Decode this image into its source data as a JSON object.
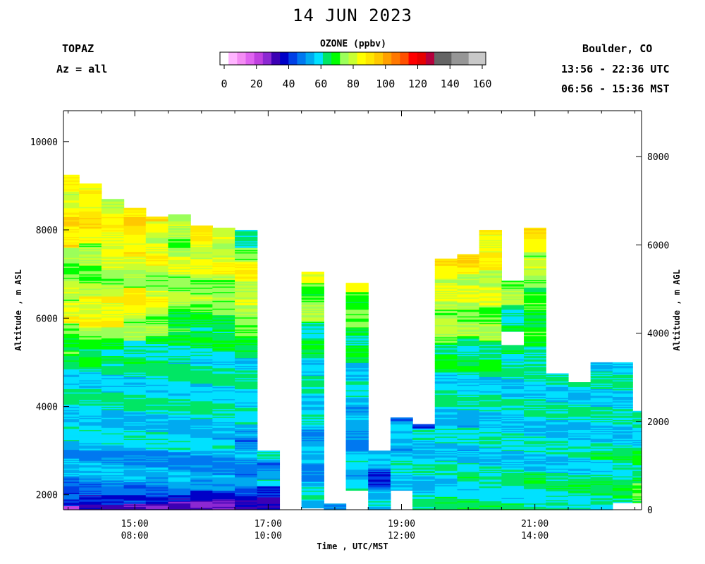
{
  "title": "14 JUN 2023",
  "header": {
    "instrument": "TOPAZ",
    "azimuth": "Az = all",
    "location": "Boulder, CO",
    "utc_range": "13:56 - 22:36 UTC",
    "mst_range": "06:56 - 15:36 MST"
  },
  "colorbar": {
    "title": "OZONE (ppbv)",
    "tick_labels": [
      "0",
      "20",
      "40",
      "60",
      "80",
      "100",
      "120",
      "140",
      "160"
    ],
    "colors": [
      "#ffffff",
      "#ffb4ff",
      "#f48cf4",
      "#e064f0",
      "#c040e0",
      "#8c28d2",
      "#3c00b4",
      "#0000c8",
      "#0040e6",
      "#0078f0",
      "#00aaf0",
      "#00e1ff",
      "#00e664",
      "#00ff00",
      "#9bff5a",
      "#c8ff32",
      "#ffff00",
      "#ffe600",
      "#ffc800",
      "#ffa000",
      "#ff7800",
      "#ff5000",
      "#ff0000",
      "#e60000",
      "#b4003c",
      "#646464",
      "#646464",
      "#969696",
      "#969696",
      "#c8c8c8",
      "#c8c8c8"
    ]
  },
  "chart_data": {
    "type": "heatmap",
    "title": "14 JUN 2023",
    "variable": "OZONE (ppbv)",
    "xlabel": "Time , UTC/MST",
    "ylabel_left": "Altitude , m ASL",
    "ylabel_right": "Altitude , m AGL",
    "x_ticks": [
      {
        "utc": "15:00",
        "mst": "08:00"
      },
      {
        "utc": "17:00",
        "mst": "10:00"
      },
      {
        "utc": "19:00",
        "mst": "12:00"
      },
      {
        "utc": "21:00",
        "mst": "14:00"
      }
    ],
    "x_range_utc_hours": [
      13.93,
      22.6
    ],
    "y_ticks_left": [
      "2000",
      "4000",
      "6000",
      "8000",
      "10000"
    ],
    "y_ticks_right": [
      "0",
      "2000",
      "4000",
      "6000",
      "8000"
    ],
    "y_range_asl_m": [
      1660,
      10700
    ],
    "color_range_ppbv": [
      0,
      160
    ],
    "profiles": [
      {
        "t_utc": 14.0,
        "top_m": 9250,
        "bottom_m": 1660,
        "layers": [
          [
            1660,
            25
          ],
          [
            1750,
            43
          ],
          [
            1900,
            49
          ],
          [
            2200,
            54
          ],
          [
            2400,
            56
          ],
          [
            3000,
            60
          ],
          [
            3500,
            61
          ],
          [
            3900,
            64
          ],
          [
            4800,
            67
          ],
          [
            5200,
            74
          ],
          [
            5900,
            89
          ],
          [
            6400,
            80
          ],
          [
            7000,
            76
          ],
          [
            7600,
            93
          ],
          [
            8300,
            86
          ],
          [
            9250
          ]
        ]
      },
      {
        "t_utc": 14.33,
        "top_m": 9050,
        "bottom_m": 1660,
        "layers": [
          [
            1660,
            34
          ],
          [
            1800,
            42
          ],
          [
            2000,
            53
          ],
          [
            2300,
            56
          ],
          [
            3000,
            60
          ],
          [
            3600,
            61
          ],
          [
            3800,
            64
          ],
          [
            4900,
            67
          ],
          [
            5300,
            76
          ],
          [
            5800,
            88
          ],
          [
            6500,
            79
          ],
          [
            7200,
            77
          ],
          [
            7700,
            91
          ],
          [
            8900,
            85
          ],
          [
            9050
          ]
        ]
      },
      {
        "t_utc": 14.67,
        "top_m": 8700,
        "bottom_m": 1660,
        "layers": [
          [
            1660,
            33
          ],
          [
            1780,
            43
          ],
          [
            2000,
            54
          ],
          [
            2200,
            56
          ],
          [
            3000,
            60
          ],
          [
            3600,
            61
          ],
          [
            3900,
            64
          ],
          [
            5000,
            67
          ],
          [
            5300,
            75
          ],
          [
            5800,
            89
          ],
          [
            6500,
            80
          ],
          [
            7100,
            82
          ],
          [
            7500,
            88
          ],
          [
            8500,
            84
          ],
          [
            8700
          ]
        ]
      },
      {
        "t_utc": 15.0,
        "top_m": 8500,
        "bottom_m": 1660,
        "layers": [
          [
            1660,
            32
          ],
          [
            1800,
            45
          ],
          [
            2000,
            53
          ],
          [
            2300,
            56
          ],
          [
            3000,
            60
          ],
          [
            3600,
            61
          ],
          [
            3900,
            64
          ],
          [
            4900,
            67
          ],
          [
            5500,
            77
          ],
          [
            6000,
            90
          ],
          [
            6700,
            81
          ],
          [
            7400,
            91
          ],
          [
            8100,
            95
          ],
          [
            8500
          ]
        ]
      },
      {
        "t_utc": 15.33,
        "top_m": 8300,
        "bottom_m": 1660,
        "layers": [
          [
            1660,
            33
          ],
          [
            1800,
            46
          ],
          [
            1950,
            53
          ],
          [
            2400,
            56
          ],
          [
            3000,
            60
          ],
          [
            3500,
            61
          ],
          [
            3900,
            64
          ],
          [
            5000,
            67
          ],
          [
            5600,
            77
          ],
          [
            6100,
            86
          ],
          [
            6500,
            80
          ],
          [
            7200,
            88
          ],
          [
            7700,
            83
          ],
          [
            8200,
            94
          ],
          [
            8300
          ]
        ]
      },
      {
        "t_utc": 15.67,
        "top_m": 8350,
        "bottom_m": 1660,
        "layers": [
          [
            1660,
            35
          ],
          [
            1850,
            45
          ],
          [
            2000,
            54
          ],
          [
            2300,
            56
          ],
          [
            3000,
            60
          ],
          [
            3500,
            61
          ],
          [
            3900,
            64
          ],
          [
            5000,
            67
          ],
          [
            5700,
            73
          ],
          [
            6300,
            79
          ],
          [
            7000,
            83
          ],
          [
            7600,
            77
          ],
          [
            8100,
            80
          ],
          [
            8350
          ]
        ]
      },
      {
        "t_utc": 16.0,
        "top_m": 8100,
        "bottom_m": 1660,
        "layers": [
          [
            1660,
            34
          ],
          [
            1850,
            44
          ],
          [
            2100,
            53
          ],
          [
            2400,
            56
          ],
          [
            3000,
            60
          ],
          [
            3500,
            61
          ],
          [
            3900,
            64
          ],
          [
            5100,
            66
          ],
          [
            5800,
            73
          ],
          [
            6400,
            80
          ],
          [
            7000,
            84
          ],
          [
            7600,
            89
          ],
          [
            8000,
            92
          ],
          [
            8100
          ]
        ]
      },
      {
        "t_utc": 16.33,
        "top_m": 8050,
        "bottom_m": 1660,
        "layers": [
          [
            1660,
            36
          ],
          [
            1900,
            45
          ],
          [
            2100,
            54
          ],
          [
            2400,
            56
          ],
          [
            3000,
            60
          ],
          [
            3400,
            61
          ],
          [
            3900,
            64
          ],
          [
            5100,
            66
          ],
          [
            5700,
            73
          ],
          [
            6400,
            79
          ],
          [
            7000,
            86
          ],
          [
            7600,
            80
          ],
          [
            8050
          ]
        ]
      },
      {
        "t_utc": 16.67,
        "top_m": 8000,
        "bottom_m": 1660,
        "layers": [
          [
            1660,
            41
          ],
          [
            1900,
            46
          ],
          [
            2200,
            53
          ],
          [
            2600,
            56
          ],
          [
            3000,
            53
          ],
          [
            3300,
            60
          ],
          [
            3900,
            64
          ],
          [
            5100,
            67
          ],
          [
            5600,
            78
          ],
          [
            6300,
            85
          ],
          [
            6900,
            88
          ],
          [
            7300,
            80
          ],
          [
            7600,
            63
          ],
          [
            8000
          ]
        ]
      },
      {
        "t_utc": 17.0,
        "top_m": 3000,
        "bottom_m": 1660,
        "layers": [
          [
            1660,
            44
          ],
          [
            1800,
            42
          ],
          [
            2200,
            60
          ],
          [
            2600,
            54
          ],
          [
            2800,
            61
          ],
          [
            3000
          ]
        ]
      },
      {
        "t_utc": 17.67,
        "top_m": 7050,
        "bottom_m": 1700,
        "layers": [
          [
            1700,
            60
          ],
          [
            1900,
            62
          ],
          [
            2200,
            56
          ],
          [
            2800,
            55
          ],
          [
            3000,
            60
          ],
          [
            3200,
            57
          ],
          [
            3600,
            61
          ],
          [
            4000,
            64
          ],
          [
            5200,
            67
          ],
          [
            5900,
            78
          ],
          [
            6500,
            75
          ],
          [
            6800,
            84
          ],
          [
            7050
          ]
        ]
      },
      {
        "t_utc": 18.0,
        "top_m": 1800,
        "bottom_m": 1660,
        "layers": [
          [
            1660,
            58
          ],
          [
            1800
          ]
        ]
      },
      {
        "t_utc": 18.33,
        "top_m": 6800,
        "bottom_m": 2100,
        "layers": [
          [
            2100,
            64
          ],
          [
            2400,
            60
          ],
          [
            2900,
            57
          ],
          [
            3400,
            53
          ],
          [
            3700,
            58
          ],
          [
            4000,
            61
          ],
          [
            4500,
            62
          ],
          [
            5000,
            67
          ],
          [
            5600,
            73
          ],
          [
            6200,
            76
          ],
          [
            6600,
            86
          ],
          [
            6800
          ]
        ]
      },
      {
        "t_utc": 18.67,
        "top_m": 3000,
        "bottom_m": 1660,
        "layers": [
          [
            1660,
            60
          ],
          [
            1900,
            55
          ],
          [
            2200,
            47
          ],
          [
            2600,
            58
          ],
          [
            3000
          ]
        ]
      },
      {
        "t_utc": 19.0,
        "top_m": 3750,
        "bottom_m": 2100,
        "layers": [
          [
            2100,
            62
          ],
          [
            2800,
            60
          ],
          [
            3300,
            59
          ],
          [
            3600,
            54
          ],
          [
            3750
          ]
        ]
      },
      {
        "t_utc": 19.33,
        "top_m": 3600,
        "bottom_m": 1660,
        "layers": [
          [
            1660,
            64
          ],
          [
            2000,
            61
          ],
          [
            3000,
            62
          ],
          [
            3500,
            42
          ],
          [
            3600
          ]
        ]
      },
      {
        "t_utc": 19.67,
        "top_m": 7350,
        "bottom_m": 1660,
        "layers": [
          [
            1660,
            66
          ],
          [
            2200,
            62
          ],
          [
            3000,
            61
          ],
          [
            4000,
            64
          ],
          [
            4800,
            69
          ],
          [
            5400,
            79
          ],
          [
            6200,
            84
          ],
          [
            6900,
            91
          ],
          [
            7350
          ]
        ]
      },
      {
        "t_utc": 20.0,
        "top_m": 7450,
        "bottom_m": 1660,
        "layers": [
          [
            1660,
            65
          ],
          [
            2500,
            62
          ],
          [
            3000,
            60
          ],
          [
            4000,
            63
          ],
          [
            4800,
            68
          ],
          [
            5600,
            77
          ],
          [
            6200,
            83
          ],
          [
            7000,
            93
          ],
          [
            7450
          ]
        ]
      },
      {
        "t_utc": 20.33,
        "top_m": 8000,
        "bottom_m": 1660,
        "layers": [
          [
            1660,
            66
          ],
          [
            2200,
            62
          ],
          [
            3000,
            62
          ],
          [
            4000,
            63
          ],
          [
            4800,
            68
          ],
          [
            5500,
            79
          ],
          [
            6300,
            83
          ],
          [
            7100,
            89
          ],
          [
            8000
          ]
        ]
      },
      {
        "t_utc": 20.67,
        "top_m": 6850,
        "bottom_m": 1660,
        "layers": [
          [
            1660,
            65
          ],
          [
            2500,
            62
          ],
          [
            3000,
            62
          ],
          [
            4000,
            63
          ],
          [
            5200,
            72
          ],
          [
            5400,
            0
          ],
          [
            5700,
            67
          ],
          [
            6300,
            78
          ],
          [
            6850
          ]
        ]
      },
      {
        "t_utc": 21.0,
        "top_m": 8050,
        "bottom_m": 1660,
        "layers": [
          [
            1660,
            66
          ],
          [
            2500,
            62
          ],
          [
            3000,
            61
          ],
          [
            3500,
            63
          ],
          [
            5000,
            68
          ],
          [
            5600,
            72
          ],
          [
            6700,
            80
          ],
          [
            7500,
            91
          ],
          [
            8050
          ]
        ]
      },
      {
        "t_utc": 21.33,
        "top_m": 4750,
        "bottom_m": 1660,
        "layers": [
          [
            1660,
            66
          ],
          [
            2200,
            64
          ],
          [
            2800,
            62
          ],
          [
            3600,
            63
          ],
          [
            4750
          ]
        ]
      },
      {
        "t_utc": 21.67,
        "top_m": 4550,
        "bottom_m": 1660,
        "layers": [
          [
            1660,
            67
          ],
          [
            2300,
            64
          ],
          [
            2900,
            62
          ],
          [
            3600,
            63
          ],
          [
            4550
          ]
        ]
      },
      {
        "t_utc": 22.0,
        "top_m": 5000,
        "bottom_m": 1660,
        "layers": [
          [
            1660,
            67
          ],
          [
            2500,
            65
          ],
          [
            3000,
            62
          ],
          [
            3800,
            63
          ],
          [
            5000
          ]
        ]
      },
      {
        "t_utc": 22.33,
        "top_m": 5000,
        "bottom_m": 1820,
        "layers": [
          [
            1820,
            69
          ],
          [
            2300,
            66
          ],
          [
            3000,
            62
          ],
          [
            3600,
            63
          ],
          [
            5000
          ]
        ]
      },
      {
        "t_utc": 22.6,
        "top_m": 3900,
        "bottom_m": 1820,
        "layers": [
          [
            1820,
            72
          ],
          [
            2400,
            68
          ],
          [
            3000,
            64
          ],
          [
            3500,
            62
          ],
          [
            3900
          ]
        ]
      }
    ]
  }
}
